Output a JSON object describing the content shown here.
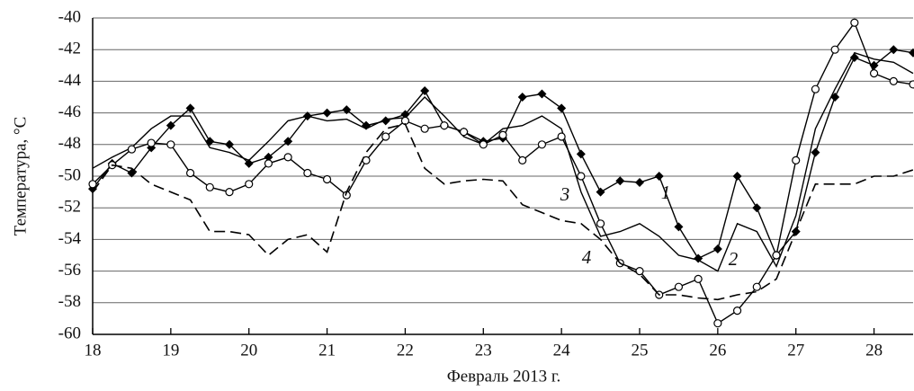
{
  "chart_data": {
    "type": "line",
    "xlabel": "Февраль 2013 г.",
    "ylabel": "Температура, °C",
    "xlim": [
      18,
      28.5
    ],
    "xticks": [
      18,
      19,
      20,
      21,
      22,
      23,
      24,
      25,
      26,
      27,
      28
    ],
    "ylim": [
      -60,
      -40
    ],
    "yticks": [
      -60,
      -58,
      -56,
      -54,
      -52,
      -50,
      -48,
      -46,
      -44,
      -42,
      -40
    ],
    "grid": true,
    "x": [
      18,
      18.25,
      18.5,
      18.75,
      19,
      19.25,
      19.5,
      19.75,
      20,
      20.25,
      20.5,
      20.75,
      21,
      21.25,
      21.5,
      21.75,
      22,
      22.25,
      22.5,
      22.75,
      23,
      23.25,
      23.5,
      23.75,
      24,
      24.25,
      24.5,
      24.75,
      25,
      25.25,
      25.5,
      25.75,
      26,
      26.25,
      26.5,
      26.75,
      27,
      27.25,
      27.5,
      27.75,
      28,
      28.25,
      28.5
    ],
    "series": [
      {
        "name": "1",
        "color": "#000000",
        "marker": "diamond",
        "dashed": false,
        "values": [
          -50.8,
          -49.2,
          -49.8,
          -48.2,
          -46.8,
          -45.7,
          -47.8,
          -48,
          -49.2,
          -48.8,
          -47.8,
          -46.2,
          -46,
          -45.8,
          -46.8,
          -46.5,
          -46.1,
          -44.6,
          -46.8,
          -47.2,
          -47.8,
          -47.6,
          -45,
          -44.8,
          -45.7,
          -48.6,
          -51,
          -50.3,
          -50.4,
          -50,
          -53.2,
          -55.2,
          -54.6,
          -50,
          -52,
          -55,
          -53.5,
          -48.5,
          -45,
          -42.5,
          -43,
          -42,
          -42.2
        ]
      },
      {
        "name": "2",
        "color": "#000000",
        "marker": null,
        "dashed": false,
        "values": [
          -49.5,
          -48.8,
          -48.2,
          -47,
          -46.2,
          -46.2,
          -48.2,
          -48.5,
          -49,
          -47.8,
          -46.5,
          -46.2,
          -46.5,
          -46.4,
          -47,
          -46.4,
          -46.3,
          -45,
          -46.2,
          -47.5,
          -48,
          -47,
          -46.8,
          -46.2,
          -47,
          -51,
          -53.8,
          -53.5,
          -53,
          -53.8,
          -55,
          -55.3,
          -56,
          -53,
          -53.5,
          -55.7,
          -52.5,
          -47,
          -44.5,
          -42.2,
          -42.6,
          -42.8,
          -43.5
        ]
      },
      {
        "name": "3",
        "color": "#000000",
        "marker": "circle",
        "dashed": false,
        "values": [
          -50.5,
          -49.3,
          -48.3,
          -47.9,
          -48,
          -49.8,
          -50.7,
          -51,
          -50.5,
          -49.2,
          -48.8,
          -49.8,
          -50.2,
          -51.2,
          -49,
          -47.5,
          -46.5,
          -47,
          -46.8,
          -47.2,
          -48,
          -47.4,
          -49,
          -48,
          -47.5,
          -50,
          -53,
          -55.5,
          -56,
          -57.5,
          -57,
          -56.5,
          -59.3,
          -58.5,
          -57,
          -55,
          -49,
          -44.5,
          -42,
          -40.3,
          -43.5,
          -44,
          -44.2
        ]
      },
      {
        "name": "4",
        "color": "#000000",
        "marker": null,
        "dashed": true,
        "values": [
          -51,
          -49.3,
          -49.5,
          -50.5,
          -51,
          -51.5,
          -53.5,
          -53.5,
          -53.7,
          -55,
          -54,
          -53.7,
          -54.8,
          -51,
          -48.5,
          -47,
          -46.7,
          -49.5,
          -50.5,
          -50.3,
          -50.2,
          -50.3,
          -51.8,
          -52.3,
          -52.8,
          -53,
          -54,
          -55.5,
          -56.2,
          -57.5,
          -57.5,
          -57.7,
          -57.8,
          -57.5,
          -57.3,
          -56.5,
          -53.5,
          -50.5,
          -50.5,
          -50.5,
          -50,
          -50,
          -49.6
        ]
      }
    ]
  }
}
